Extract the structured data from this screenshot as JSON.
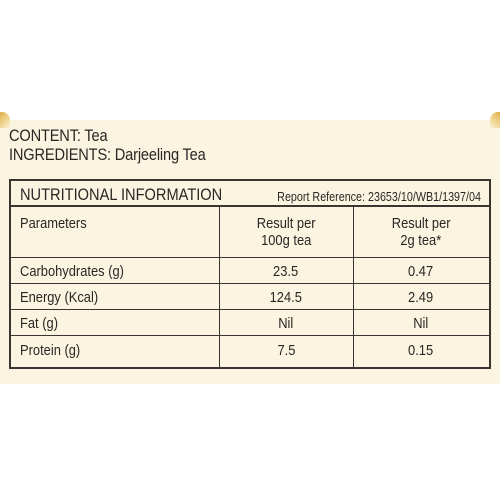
{
  "header": {
    "content_line": "CONTENT: Tea",
    "ingredients_line": "INGREDIENTS: Darjeeling Tea"
  },
  "nutrition": {
    "title": "NUTRITIONAL INFORMATION",
    "report_reference": "Report Reference: 23653/10/WB1/1397/04",
    "columns": {
      "parameters": "Parameters",
      "per_100g_line1": "Result per",
      "per_100g_line2": "100g tea",
      "per_2g_line1": "Result per",
      "per_2g_line2": "2g tea*"
    },
    "rows": [
      {
        "label": "Carbohydrates (g)",
        "per_100g": "23.5",
        "per_2g": "0.47"
      },
      {
        "label": "Energy (Kcal)",
        "per_100g": "124.5",
        "per_2g": "2.49"
      },
      {
        "label": "Fat (g)",
        "per_100g": "Nil",
        "per_2g": "Nil"
      },
      {
        "label": "Protein (g)",
        "per_100g": "7.5",
        "per_2g": "0.15"
      }
    ]
  },
  "colors": {
    "panel_background": "#fbf4e1",
    "gold_accent": "#e0b049",
    "text": "#2a2623"
  }
}
